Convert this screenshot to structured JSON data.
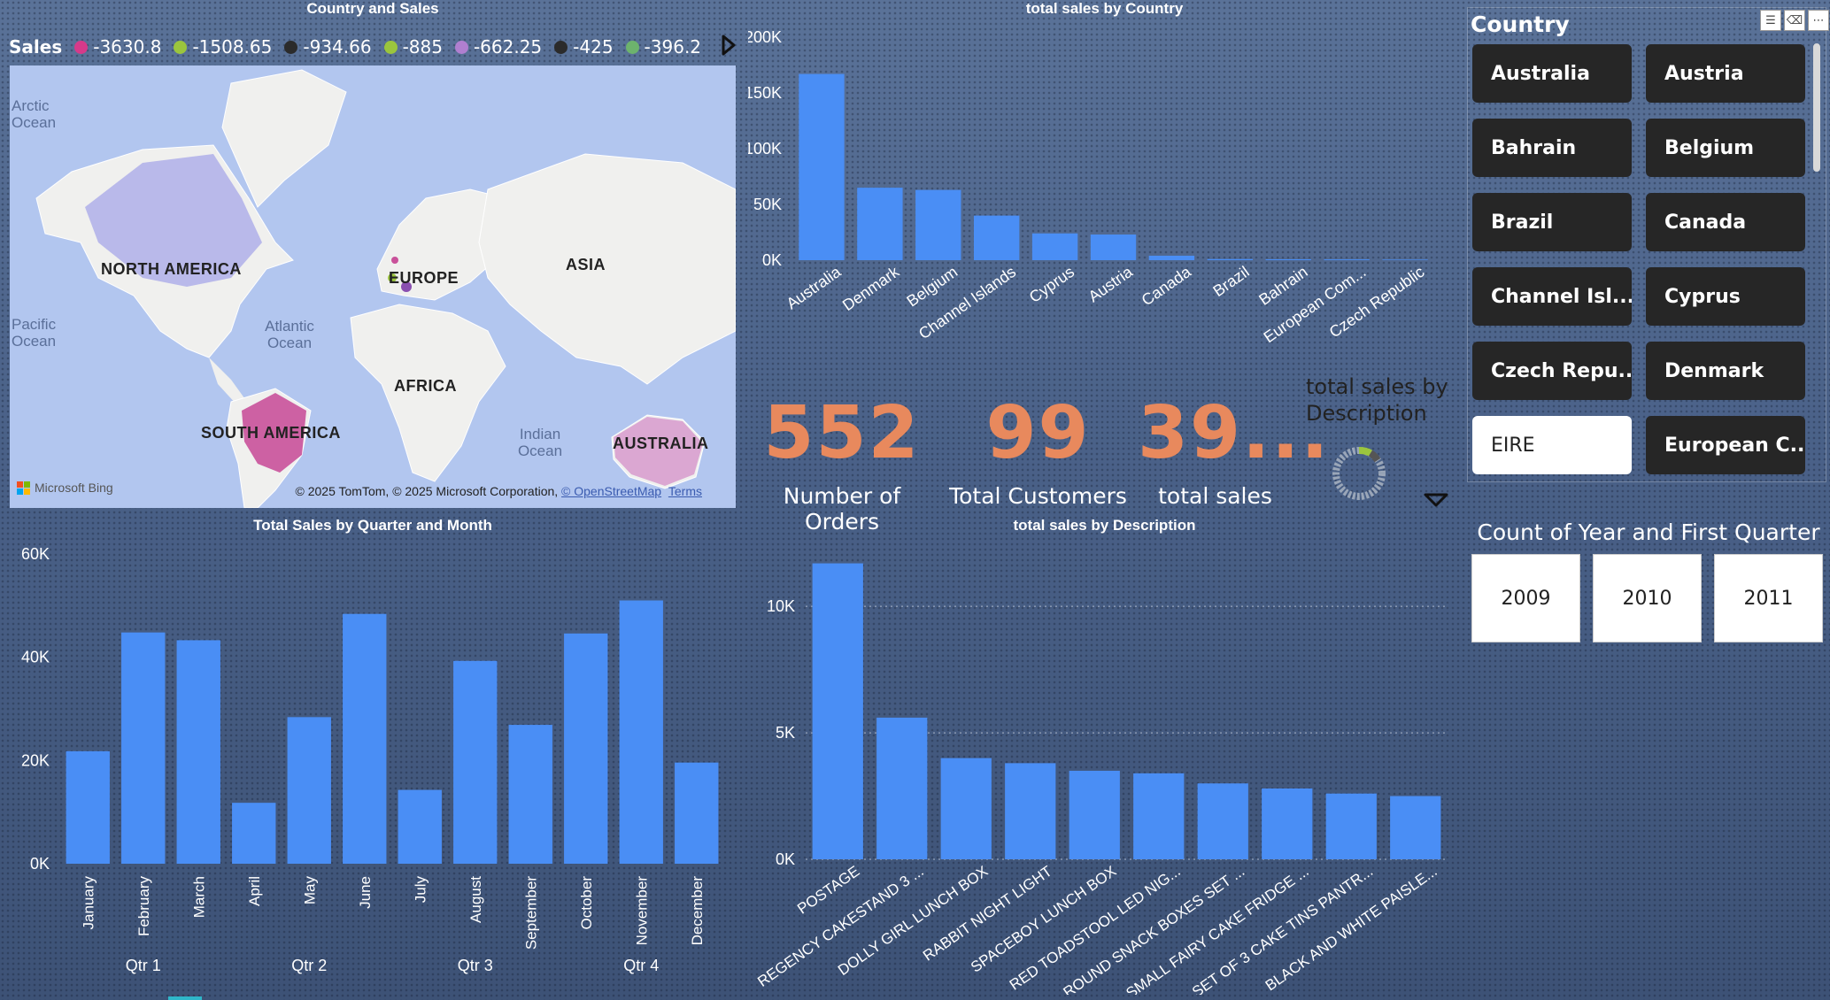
{
  "map_visual": {
    "title": "Country and Sales",
    "legend_title": "Sales",
    "legend": [
      {
        "label": "-3630.8",
        "color": "#d63a8a"
      },
      {
        "label": "-1508.65",
        "color": "#9bc53d"
      },
      {
        "label": "-934.66",
        "color": "#2b2b2b"
      },
      {
        "label": "-885",
        "color": "#9bc53d"
      },
      {
        "label": "-662.25",
        "color": "#b07fd0"
      },
      {
        "label": "-425",
        "color": "#2b2b2b"
      },
      {
        "label": "-396.2",
        "color": "#6db36d"
      }
    ],
    "labels": {
      "north_america": "NORTH AMERICA",
      "europe": "EUROPE",
      "asia": "ASIA",
      "africa": "AFRICA",
      "south_america": "SOUTH AMERICA",
      "australia": "AUSTRALIA"
    },
    "oceans": {
      "arctic": "Arctic Ocean",
      "pacific": "Pacific Ocean",
      "atlantic": "Atlantic Ocean",
      "indian": "Indian Ocean"
    },
    "bing_logo": "Microsoft Bing",
    "copyright": "© 2025 TomTom, © 2025 Microsoft Corporation,",
    "osm_link": "© OpenStreetMap",
    "terms_link": "Terms"
  },
  "kpis": [
    {
      "value": "552",
      "label": "Number of Orders"
    },
    {
      "value": "99",
      "label": "Total Customers"
    },
    {
      "value": "39...",
      "label": "total sales"
    }
  ],
  "donut": {
    "title_line1": "total sales by",
    "title_line2": "Description"
  },
  "slicer_country": {
    "title": "Country",
    "items": [
      {
        "label": "Australia",
        "selected": false
      },
      {
        "label": "Austria",
        "selected": false
      },
      {
        "label": "Bahrain",
        "selected": false
      },
      {
        "label": "Belgium",
        "selected": false
      },
      {
        "label": "Brazil",
        "selected": false
      },
      {
        "label": "Canada",
        "selected": false
      },
      {
        "label": "Channel Isl...",
        "selected": false
      },
      {
        "label": "Cyprus",
        "selected": false
      },
      {
        "label": "Czech Repu...",
        "selected": false
      },
      {
        "label": "Denmark",
        "selected": false
      },
      {
        "label": "EIRE",
        "selected": true
      },
      {
        "label": "European C...",
        "selected": false
      }
    ]
  },
  "slicer_year": {
    "title": "Count of Year and First Quarter",
    "items": [
      "2009",
      "2010",
      "2011"
    ]
  },
  "chart_data": [
    {
      "id": "country",
      "type": "bar",
      "title": "total sales by Country",
      "categories": [
        "Australia",
        "Denmark",
        "Belgium",
        "Channel Islands",
        "Cyprus",
        "Austria",
        "Canada",
        "Brazil",
        "Bahrain",
        "European Com...",
        "Czech Republic"
      ],
      "values": [
        167000,
        65000,
        63000,
        40000,
        24000,
        23000,
        4000,
        1000,
        800,
        700,
        500
      ],
      "yticks": [
        0,
        50000,
        100000,
        150000,
        200000
      ],
      "ytick_labels": [
        "0K",
        "50K",
        "100K",
        "150K",
        "200K"
      ],
      "ylim": [
        0,
        200000
      ],
      "color": "#4a8ef5"
    },
    {
      "id": "month",
      "type": "bar",
      "title": "Total Sales by Quarter and Month",
      "categories": [
        "January",
        "February",
        "March",
        "April",
        "May",
        "June",
        "July",
        "August",
        "September",
        "October",
        "November",
        "December"
      ],
      "groups": [
        "Qtr 1",
        "Qtr 2",
        "Qtr 3",
        "Qtr 4"
      ],
      "values": [
        21800,
        44800,
        43300,
        11800,
        28400,
        48400,
        14300,
        39300,
        26900,
        44600,
        51000,
        19600
      ],
      "yticks": [
        0,
        20000,
        40000,
        60000
      ],
      "ytick_labels": [
        "0K",
        "20K",
        "40K",
        "60K"
      ],
      "ylim": [
        0,
        60000
      ],
      "color": "#4a8ef5"
    },
    {
      "id": "desc",
      "type": "bar",
      "title": "total sales by Description",
      "categories": [
        "POSTAGE",
        "REGENCY CAKESTAND 3 ...",
        "DOLLY GIRL LUNCH BOX",
        "RABBIT NIGHT LIGHT",
        "SPACEBOY LUNCH BOX",
        "RED TOADSTOOL LED NIG...",
        "ROUND SNACK BOXES SET ...",
        "SMALL FAIRY CAKE FRIDGE ...",
        "SET OF 3 CAKE TINS PANTR...",
        "BLACK AND WHITE PAISLE..."
      ],
      "values": [
        11700,
        5600,
        4000,
        3800,
        3500,
        3400,
        3000,
        2800,
        2600,
        2500
      ],
      "yticks": [
        0,
        5000,
        10000
      ],
      "ytick_labels": [
        "0K",
        "5K",
        "10K"
      ],
      "ylim": [
        0,
        12000
      ],
      "color": "#4a8ef5"
    }
  ]
}
